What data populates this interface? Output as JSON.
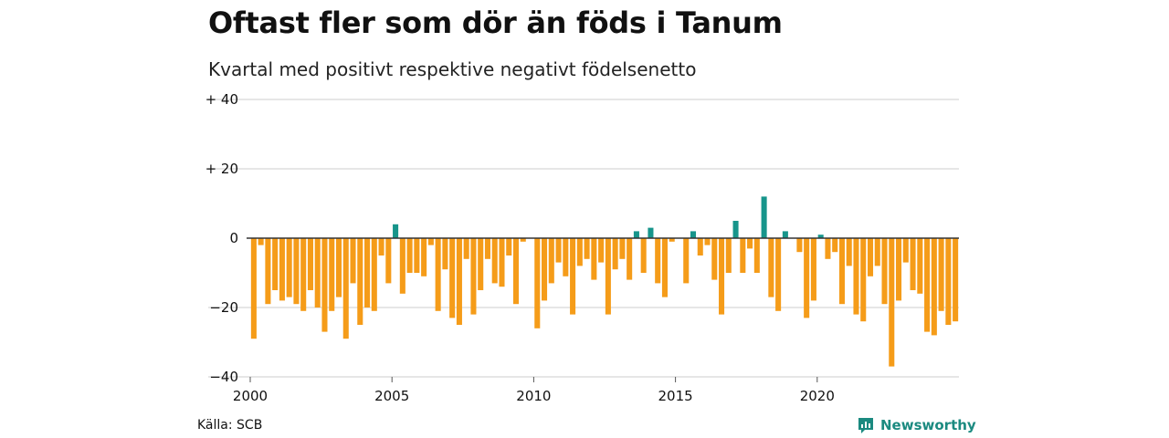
{
  "header": {
    "title": "Oftast fler som dör än föds i Tanum",
    "subtitle": "Kvartal med positivt respektive negativt födelsenetto"
  },
  "footer": {
    "source": "Källa: SCB",
    "brand": "Newsworthy"
  },
  "colors": {
    "positive": "#17958b",
    "negative": "#f59c19",
    "grid": "#dddddd",
    "zero_line": "#333333",
    "brand": "#1b8a80"
  },
  "chart_data": {
    "type": "bar",
    "title": "Oftast fler som dör än föds i Tanum",
    "subtitle": "Kvartal med positivt respektive negativt födelsenetto",
    "xlabel": "",
    "ylabel": "",
    "ylim": [
      -40,
      40
    ],
    "y_ticks": [
      {
        "value": 40,
        "label": "+ 40"
      },
      {
        "value": 20,
        "label": "+ 20"
      },
      {
        "value": 0,
        "label": "0"
      },
      {
        "value": -20,
        "label": "−20"
      },
      {
        "value": -40,
        "label": "−40"
      }
    ],
    "x_ticks": [
      {
        "value": 2000,
        "label": "2000"
      },
      {
        "value": 2005,
        "label": "2005"
      },
      {
        "value": 2010,
        "label": "2010"
      },
      {
        "value": 2015,
        "label": "2015"
      },
      {
        "value": 2020,
        "label": "2020"
      }
    ],
    "start_year": 2000,
    "periods_per_year": 4,
    "grid": true,
    "legend": "none",
    "values": [
      -29,
      -2,
      -19,
      -15,
      -18,
      -17,
      -19,
      -21,
      -15,
      -20,
      -27,
      -21,
      -17,
      -29,
      -13,
      -25,
      -20,
      -21,
      -5,
      -13,
      4,
      -16,
      -10,
      -10,
      -11,
      -2,
      -21,
      -9,
      -23,
      -25,
      -6,
      -22,
      -15,
      -6,
      -13,
      -14,
      -5,
      -19,
      -1,
      0,
      -26,
      -18,
      -13,
      -7,
      -11,
      -22,
      -8,
      -6,
      -12,
      -7,
      -22,
      -9,
      -6,
      -12,
      2,
      -10,
      3,
      -13,
      -17,
      -1,
      0,
      -13,
      2,
      -5,
      -2,
      -12,
      -22,
      -10,
      5,
      -10,
      -3,
      -10,
      12,
      -17,
      -21,
      2,
      0,
      -4,
      -23,
      -18,
      1,
      -6,
      -4,
      -19,
      -8,
      -22,
      -24,
      -11,
      -8,
      -19,
      -37,
      -18,
      -7,
      -15,
      -16,
      -27,
      -28,
      -21,
      -25,
      -24
    ]
  }
}
